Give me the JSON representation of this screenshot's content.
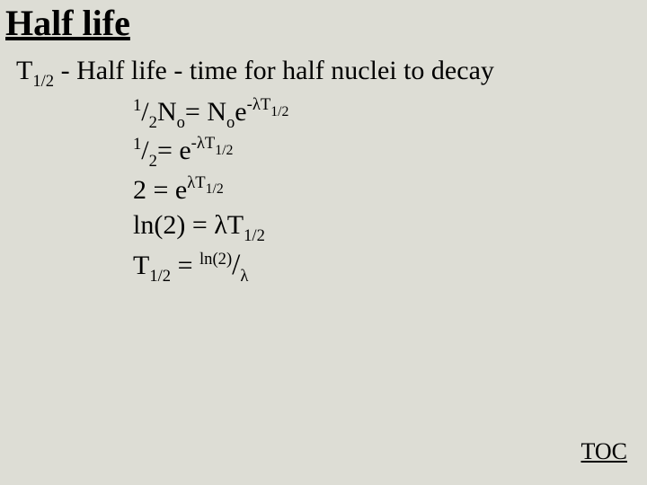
{
  "title": "Half life",
  "definition": {
    "symbol_T": "T",
    "symbol_T_sub": "1/2",
    "text": " - Half life - time for half nuclei to decay"
  },
  "equations": {
    "eq1": {
      "frac_num": "1",
      "frac_slash": "/",
      "frac_den": "2",
      "N1": "N",
      "N1_sub": "o",
      "eq": "= N",
      "N2_sub": "o",
      "e": "e",
      "exp_prefix": "-λT",
      "exp_sub": "1/2"
    },
    "eq2": {
      "frac_num": "1",
      "frac_slash": "/",
      "frac_den": "2",
      "eq": "= e",
      "exp_prefix": "-λT",
      "exp_sub": "1/2"
    },
    "eq3": {
      "lhs": "2 = e",
      "exp_prefix": "λT",
      "exp_sub": "1/2"
    },
    "eq4": {
      "lhs": "ln(2) = λT",
      "T_sub": "1/2"
    },
    "eq5": {
      "T": "T",
      "T_sub": "1/2",
      "eq": " = ",
      "num": "ln(2)",
      "slash": "/",
      "den": "λ"
    }
  },
  "toc": "TOC"
}
